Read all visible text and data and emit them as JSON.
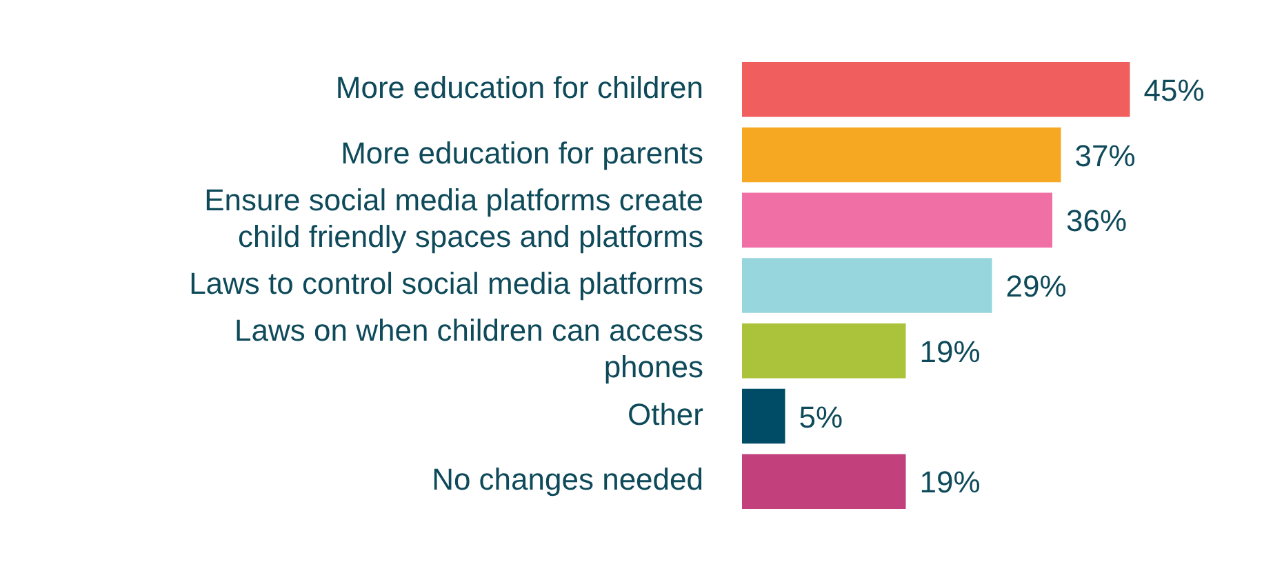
{
  "chart_data": {
    "type": "bar",
    "orientation": "horizontal",
    "categories": [
      "More education for children",
      "More education for parents",
      "Ensure social media platforms create child friendly spaces and platforms",
      "Laws to control social media platforms",
      "Laws on when children can access phones",
      "Other",
      "No changes needed"
    ],
    "values": [
      45,
      37,
      36,
      29,
      19,
      5,
      19
    ],
    "value_labels": [
      "45%",
      "37%",
      "36%",
      "29%",
      "19%",
      "5%",
      "19%"
    ],
    "colors": [
      "#f15e5e",
      "#f7a823",
      "#f06fa4",
      "#96d6dc",
      "#abc23b",
      "#004c66",
      "#c2407b"
    ],
    "grid": false,
    "legend": false
  }
}
